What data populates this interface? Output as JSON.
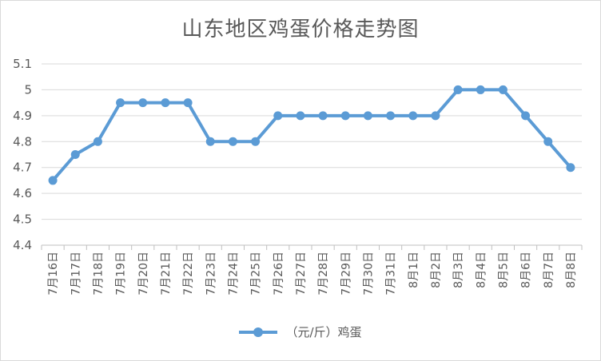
{
  "chart_data": {
    "type": "line",
    "title": "山东地区鸡蛋价格走势图",
    "categories": [
      "7月16日",
      "7月17日",
      "7月18日",
      "7月19日",
      "7月20日",
      "7月21日",
      "7月22日",
      "7月23日",
      "7月24日",
      "7月25日",
      "7月26日",
      "7月27日",
      "7月28日",
      "7月29日",
      "7月30日",
      "7月31日",
      "8月1日",
      "8月2日",
      "8月3日",
      "8月4日",
      "8月5日",
      "8月6日",
      "8月7日",
      "8月8日"
    ],
    "series": [
      {
        "name": "（元/斤）鸡蛋",
        "color": "#5b9bd5",
        "values": [
          4.65,
          4.75,
          4.8,
          4.95,
          4.95,
          4.95,
          4.95,
          4.8,
          4.8,
          4.8,
          4.9,
          4.9,
          4.9,
          4.9,
          4.9,
          4.9,
          4.9,
          4.9,
          5.0,
          5.0,
          5.0,
          4.9,
          4.8,
          4.7
        ]
      }
    ],
    "ylim": [
      4.4,
      5.1
    ],
    "yticks": [
      "4.4",
      "4.5",
      "4.6",
      "4.7",
      "4.8",
      "4.9",
      "5",
      "5.1"
    ],
    "grid": true,
    "legend": "bottom"
  }
}
